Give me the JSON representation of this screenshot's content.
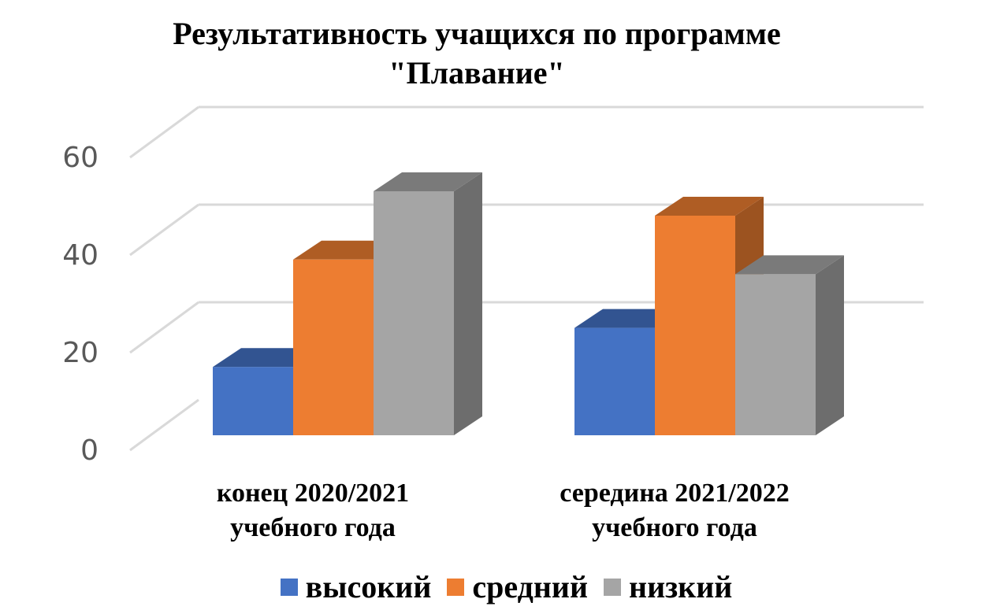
{
  "chart_data": {
    "type": "bar",
    "title": [
      "Результативность учащихся по программе",
      "\"Плавание\""
    ],
    "categories": [
      [
        "конец 2020/2021",
        "учебного года"
      ],
      [
        "середина 2021/2022",
        "учебного года"
      ]
    ],
    "series": [
      {
        "name": "высокий",
        "values": [
          14,
          22
        ],
        "color": "#4472C4"
      },
      {
        "name": "средний",
        "values": [
          36,
          45
        ],
        "color": "#ED7D31"
      },
      {
        "name": "низкий",
        "values": [
          50,
          33
        ],
        "color": "#A5A5A5"
      }
    ],
    "yticks": [
      "0",
      "20",
      "40",
      "60"
    ],
    "ylim": [
      0,
      60
    ],
    "grid": true,
    "legend_position": "bottom",
    "style": "3d-clustered-column"
  }
}
